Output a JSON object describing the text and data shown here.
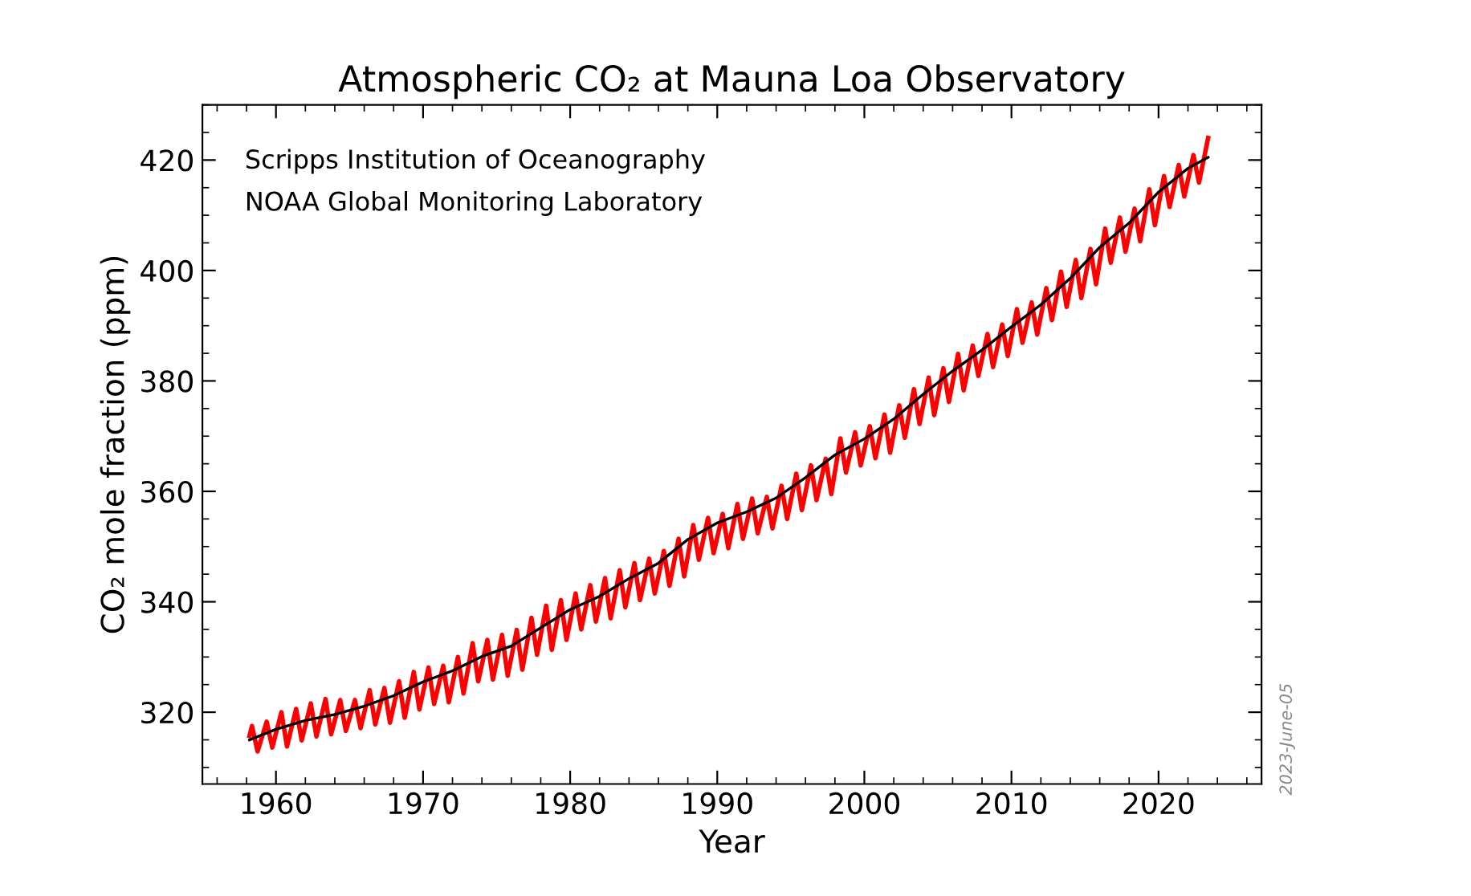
{
  "chart_data": {
    "type": "line",
    "title": "Atmospheric CO₂ at Mauna Loa Observatory",
    "xlabel": "Year",
    "ylabel": "CO₂ mole fraction (ppm)",
    "annotations": [
      "Scripps Institution of Oceanography",
      "NOAA Global Monitoring Laboratory",
      "2023-June-05"
    ],
    "xlim": [
      1955,
      2027
    ],
    "ylim": [
      307,
      430
    ],
    "xticks": [
      1960,
      1970,
      1980,
      1990,
      2000,
      2010,
      2020
    ],
    "yticks": [
      320,
      340,
      360,
      380,
      400,
      420
    ],
    "grid": false,
    "marker": "none",
    "line_style": "solid",
    "series": [
      {
        "color": "#ff0000",
        "x": [
          1958.2,
          1958.37,
          1958.75,
          1959.37,
          1959.75,
          1960.37,
          1960.75,
          1961.37,
          1961.75,
          1962.37,
          1962.75,
          1963.37,
          1963.75,
          1964.37,
          1964.75,
          1965.37,
          1965.75,
          1966.37,
          1966.75,
          1967.37,
          1967.75,
          1968.37,
          1968.75,
          1969.37,
          1969.75,
          1970.37,
          1970.75,
          1971.37,
          1971.75,
          1972.37,
          1972.75,
          1973.37,
          1973.75,
          1974.37,
          1974.75,
          1975.37,
          1975.75,
          1976.37,
          1976.75,
          1977.37,
          1977.75,
          1978.37,
          1978.75,
          1979.37,
          1979.75,
          1980.37,
          1980.75,
          1981.37,
          1981.75,
          1982.37,
          1982.75,
          1983.37,
          1983.75,
          1984.37,
          1984.75,
          1985.37,
          1985.75,
          1986.37,
          1986.75,
          1987.37,
          1987.75,
          1988.37,
          1988.75,
          1989.37,
          1989.75,
          1990.37,
          1990.75,
          1991.37,
          1991.75,
          1992.37,
          1992.75,
          1993.37,
          1993.75,
          1994.37,
          1994.75,
          1995.37,
          1995.75,
          1996.37,
          1996.75,
          1997.37,
          1997.75,
          1998.37,
          1998.75,
          1999.37,
          1999.75,
          2000.37,
          2000.75,
          2001.37,
          2001.75,
          2002.37,
          2002.75,
          2003.37,
          2003.75,
          2004.37,
          2004.75,
          2005.37,
          2005.75,
          2006.37,
          2006.75,
          2007.37,
          2007.75,
          2008.37,
          2008.75,
          2009.37,
          2009.75,
          2010.37,
          2010.75,
          2011.37,
          2011.75,
          2012.37,
          2012.75,
          2013.37,
          2013.75,
          2014.37,
          2014.75,
          2015.37,
          2015.75,
          2016.37,
          2016.75,
          2017.37,
          2017.75,
          2018.37,
          2018.75,
          2019.37,
          2019.75,
          2020.37,
          2020.75,
          2021.37,
          2021.75,
          2022.37,
          2022.75,
          2023.37
        ],
        "values": [
          315.7,
          317.5,
          312.9,
          318.3,
          313.6,
          320.0,
          313.8,
          320.6,
          314.9,
          321.6,
          315.6,
          322.4,
          316.0,
          322.2,
          316.6,
          322.2,
          317.1,
          324.0,
          317.8,
          324.4,
          318.1,
          325.6,
          319.0,
          327.3,
          320.5,
          328.1,
          321.5,
          328.4,
          321.8,
          330.0,
          323.4,
          332.5,
          325.6,
          333.1,
          325.9,
          334.0,
          326.6,
          334.9,
          327.7,
          337.1,
          330.4,
          339.3,
          331.3,
          340.3,
          333.1,
          341.5,
          335.0,
          343.0,
          336.4,
          344.3,
          337.0,
          345.7,
          339.0,
          347.0,
          340.3,
          347.8,
          341.5,
          349.2,
          342.9,
          351.4,
          344.6,
          353.9,
          347.6,
          355.2,
          348.8,
          355.9,
          349.7,
          357.7,
          351.4,
          358.7,
          352.4,
          359.0,
          353.3,
          361.0,
          355.0,
          363.2,
          356.6,
          364.7,
          358.4,
          365.9,
          359.5,
          369.6,
          363.4,
          370.7,
          364.7,
          371.8,
          366.0,
          373.9,
          367.0,
          375.6,
          369.7,
          378.5,
          372.2,
          380.6,
          373.8,
          382.3,
          376.2,
          384.9,
          378.3,
          386.4,
          380.9,
          388.5,
          382.5,
          390.2,
          384.5,
          393.0,
          386.9,
          394.2,
          388.4,
          396.8,
          391.0,
          399.8,
          393.4,
          401.9,
          395.0,
          403.9,
          397.5,
          407.6,
          401.4,
          409.6,
          403.4,
          411.2,
          405.3,
          414.7,
          408.2,
          417.1,
          411.5,
          419.1,
          413.4,
          420.9,
          415.9,
          424.0
        ]
      },
      {
        "color": "#000000",
        "x": [
          1958.2,
          1960,
          1962,
          1964,
          1966,
          1968,
          1970,
          1972,
          1974,
          1976,
          1978,
          1980,
          1982,
          1984,
          1986,
          1988,
          1990,
          1992,
          1994,
          1996,
          1998,
          2000,
          2002,
          2004,
          2006,
          2008,
          2010,
          2012,
          2014,
          2016,
          2018,
          2020,
          2022,
          2023.37
        ],
        "values": [
          315.0,
          316.9,
          318.5,
          319.6,
          321.1,
          323.0,
          325.5,
          327.5,
          330.1,
          332.0,
          335.3,
          338.6,
          341.0,
          344.2,
          347.0,
          351.3,
          354.3,
          356.3,
          358.8,
          362.5,
          366.6,
          369.5,
          373.1,
          377.6,
          381.8,
          385.6,
          389.8,
          393.8,
          398.6,
          404.2,
          408.6,
          414.2,
          418.5,
          420.5
        ]
      }
    ]
  }
}
